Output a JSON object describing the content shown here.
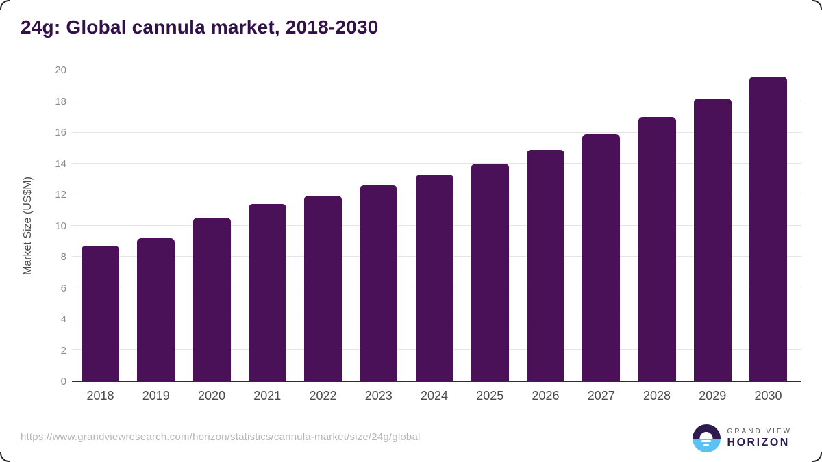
{
  "chart_data": {
    "type": "bar",
    "title": "24g: Global cannula market, 2018-2030",
    "categories": [
      "2018",
      "2019",
      "2020",
      "2021",
      "2022",
      "2023",
      "2024",
      "2025",
      "2026",
      "2027",
      "2028",
      "2029",
      "2030"
    ],
    "values": [
      8.7,
      9.2,
      10.5,
      11.4,
      11.9,
      12.6,
      13.3,
      14.0,
      14.9,
      15.9,
      17.0,
      18.2,
      19.6
    ],
    "xlabel": "",
    "ylabel": "Market Size (US$M)",
    "ylim": [
      0,
      20
    ],
    "ytick_step": 2,
    "yticks": [
      0,
      2,
      4,
      6,
      8,
      10,
      12,
      14,
      16,
      18,
      20
    ],
    "grid": true,
    "legend": "none",
    "bar_color": "#4a1158"
  },
  "footer": {
    "source_url": "https://www.grandviewresearch.com/horizon/statistics/cannula-market/size/24g/global",
    "logo": {
      "line1": "GRAND VIEW",
      "line2": "HORIZON",
      "icon": "horizon-sun-icon"
    }
  },
  "colors": {
    "title": "#321049",
    "bar": "#4a1158",
    "gridline": "#e5e5e7",
    "axis_line": "#2e2e2e",
    "tick_text": "#8a8a8a",
    "logo_navy": "#2d1b4e",
    "logo_blue": "#5ac1f0"
  }
}
